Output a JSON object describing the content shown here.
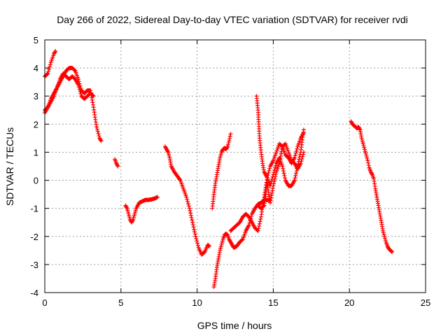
{
  "chart_data": {
    "type": "scatter",
    "title": "Day 266 of 2022, Sidereal Day-to-day VTEC variation (SDTVAR) for receiver rvdi",
    "xlabel": "GPS time / hours",
    "ylabel": "SDTVAR / TECUs",
    "xlim": [
      0,
      25
    ],
    "ylim": [
      -4,
      5
    ],
    "xticks": [
      "0",
      "5",
      "10",
      "15",
      "20",
      "25"
    ],
    "yticks": [
      "-4",
      "-3",
      "-2",
      "-1",
      "0",
      "1",
      "2",
      "3",
      "4",
      "5"
    ],
    "grid": true,
    "marker": "+",
    "color": "#ff0000",
    "series": [
      {
        "name": "seg1",
        "x": [
          0.0,
          0.2,
          0.4,
          0.6,
          0.7
        ],
        "y": [
          3.7,
          3.8,
          4.2,
          4.5,
          4.6
        ]
      },
      {
        "name": "seg2",
        "x": [
          0.0,
          0.2,
          0.4,
          0.6,
          0.8,
          1.0,
          1.2,
          1.4,
          1.6,
          1.8,
          2.0,
          2.2,
          2.4,
          2.6,
          2.8,
          3.0,
          3.2,
          3.4,
          3.6,
          3.7
        ],
        "y": [
          2.4,
          2.6,
          2.8,
          3.0,
          3.3,
          3.5,
          3.7,
          3.9,
          4.0,
          4.0,
          3.9,
          3.6,
          3.2,
          3.1,
          3.2,
          3.2,
          2.6,
          1.9,
          1.5,
          1.4
        ]
      },
      {
        "name": "seg3",
        "x": [
          0.0,
          0.2,
          0.4,
          0.6,
          0.8,
          1.0,
          1.2,
          1.4,
          1.6,
          1.8,
          2.0,
          2.2,
          2.4,
          2.6,
          2.8,
          3.0,
          3.2
        ],
        "y": [
          2.5,
          2.6,
          2.9,
          3.1,
          3.3,
          3.6,
          3.8,
          3.7,
          3.6,
          3.7,
          3.6,
          3.4,
          3.0,
          2.9,
          3.0,
          3.1,
          3.0
        ]
      },
      {
        "name": "seg4",
        "x": [
          4.6,
          4.7,
          4.8
        ],
        "y": [
          0.75,
          0.6,
          0.5
        ]
      },
      {
        "name": "seg5",
        "x": [
          5.3,
          5.4,
          5.5,
          5.6,
          5.7,
          5.8,
          5.9,
          6.0,
          6.2,
          6.4,
          6.6,
          6.8,
          7.0,
          7.2,
          7.4
        ],
        "y": [
          -0.9,
          -1.0,
          -1.2,
          -1.4,
          -1.5,
          -1.4,
          -1.2,
          -1.0,
          -0.8,
          -0.75,
          -0.7,
          -0.7,
          -0.68,
          -0.65,
          -0.6
        ]
      },
      {
        "name": "seg6",
        "x": [
          7.9,
          8.0,
          8.1,
          8.2,
          8.3,
          8.5,
          8.7,
          8.9,
          9.1,
          9.3,
          9.5,
          9.7,
          9.9,
          10.1,
          10.3,
          10.5,
          10.7,
          10.8
        ],
        "y": [
          1.2,
          1.1,
          1.0,
          0.8,
          0.5,
          0.3,
          0.15,
          0.0,
          -0.3,
          -0.6,
          -1.0,
          -1.5,
          -2.0,
          -2.4,
          -2.65,
          -2.55,
          -2.3,
          -2.35
        ]
      },
      {
        "name": "seg7",
        "x": [
          11.1,
          11.2,
          11.3,
          11.4,
          11.5,
          11.6,
          11.7,
          11.8,
          11.9,
          12.0,
          12.1,
          12.2,
          12.3,
          12.4,
          12.6,
          12.8,
          13.0,
          13.2,
          13.4,
          13.6,
          13.8,
          14.0,
          14.2,
          14.4,
          14.6,
          14.8
        ],
        "y": [
          -3.8,
          -3.5,
          -3.1,
          -2.8,
          -2.5,
          -2.3,
          -2.1,
          -1.95,
          -1.9,
          -1.95,
          -2.1,
          -2.2,
          -2.3,
          -2.4,
          -2.35,
          -2.2,
          -2.1,
          -1.8,
          -1.6,
          -1.2,
          -1.0,
          -0.85,
          -0.8,
          -0.7,
          -0.7,
          -0.7
        ]
      },
      {
        "name": "seg8",
        "x": [
          11.0,
          11.1,
          11.2,
          11.3,
          11.4,
          11.5,
          11.6,
          11.7,
          11.8,
          11.9,
          12.0,
          12.1,
          12.2
        ],
        "y": [
          -1.0,
          -0.5,
          -0.1,
          0.2,
          0.5,
          0.8,
          1.0,
          1.1,
          1.15,
          1.1,
          1.2,
          1.4,
          1.65
        ]
      },
      {
        "name": "seg9",
        "x": [
          12.2,
          12.4,
          12.6,
          12.8,
          13.0,
          13.2,
          13.4,
          13.6,
          13.8,
          14.0,
          14.2,
          14.4,
          14.6,
          14.8,
          15.0,
          15.2,
          15.4,
          15.6,
          15.8,
          16.0,
          16.2,
          16.4,
          16.6,
          16.8,
          17.0
        ],
        "y": [
          -1.8,
          -1.7,
          -1.6,
          -1.5,
          -1.3,
          -1.2,
          -1.3,
          -1.5,
          -1.7,
          -1.8,
          -1.3,
          -0.6,
          0.1,
          0.5,
          0.7,
          1.0,
          1.3,
          1.2,
          0.9,
          0.8,
          0.6,
          0.8,
          1.2,
          1.5,
          1.7
        ]
      },
      {
        "name": "seg10",
        "x": [
          13.9,
          14.0,
          14.05,
          14.1,
          14.2,
          14.3,
          14.4,
          14.5,
          14.6,
          14.8,
          15.0,
          15.2,
          15.4,
          15.6,
          15.8,
          16.0,
          16.2,
          16.4,
          16.6,
          16.8,
          17.0
        ],
        "y": [
          3.0,
          2.5,
          2.0,
          1.5,
          1.0,
          0.6,
          0.3,
          0.2,
          0.1,
          -0.2,
          0.2,
          0.6,
          0.8,
          0.5,
          0.0,
          -0.2,
          -0.2,
          0.0,
          0.5,
          1.0,
          1.8
        ]
      },
      {
        "name": "seg11",
        "x": [
          14.0,
          14.2,
          14.4,
          14.5,
          14.6,
          14.7,
          14.8,
          15.0,
          15.2,
          15.4,
          15.6,
          15.8,
          16.0,
          16.2,
          16.4,
          16.6,
          16.8,
          17.0
        ],
        "y": [
          -0.9,
          -1.0,
          -0.9,
          -0.5,
          -0.1,
          -0.5,
          -0.8,
          -0.2,
          0.3,
          0.6,
          1.2,
          1.3,
          1.0,
          0.7,
          0.6,
          0.4,
          0.6,
          1.0
        ]
      },
      {
        "name": "seg12",
        "x": [
          20.1,
          20.2,
          20.3,
          20.4,
          20.5,
          20.6,
          20.7,
          20.8,
          20.9,
          21.0,
          21.1,
          21.2,
          21.3,
          21.4,
          21.5,
          21.6,
          21.7,
          21.8,
          21.9,
          22.0,
          22.1,
          22.2,
          22.3,
          22.4,
          22.5,
          22.6,
          22.7,
          22.8
        ],
        "y": [
          2.1,
          2.0,
          1.95,
          1.9,
          1.85,
          1.9,
          1.8,
          1.5,
          1.3,
          1.1,
          0.9,
          0.7,
          0.45,
          0.3,
          0.2,
          0.05,
          -0.3,
          -0.6,
          -0.9,
          -1.2,
          -1.5,
          -1.8,
          -2.0,
          -2.2,
          -2.35,
          -2.45,
          -2.5,
          -2.55
        ]
      }
    ]
  }
}
